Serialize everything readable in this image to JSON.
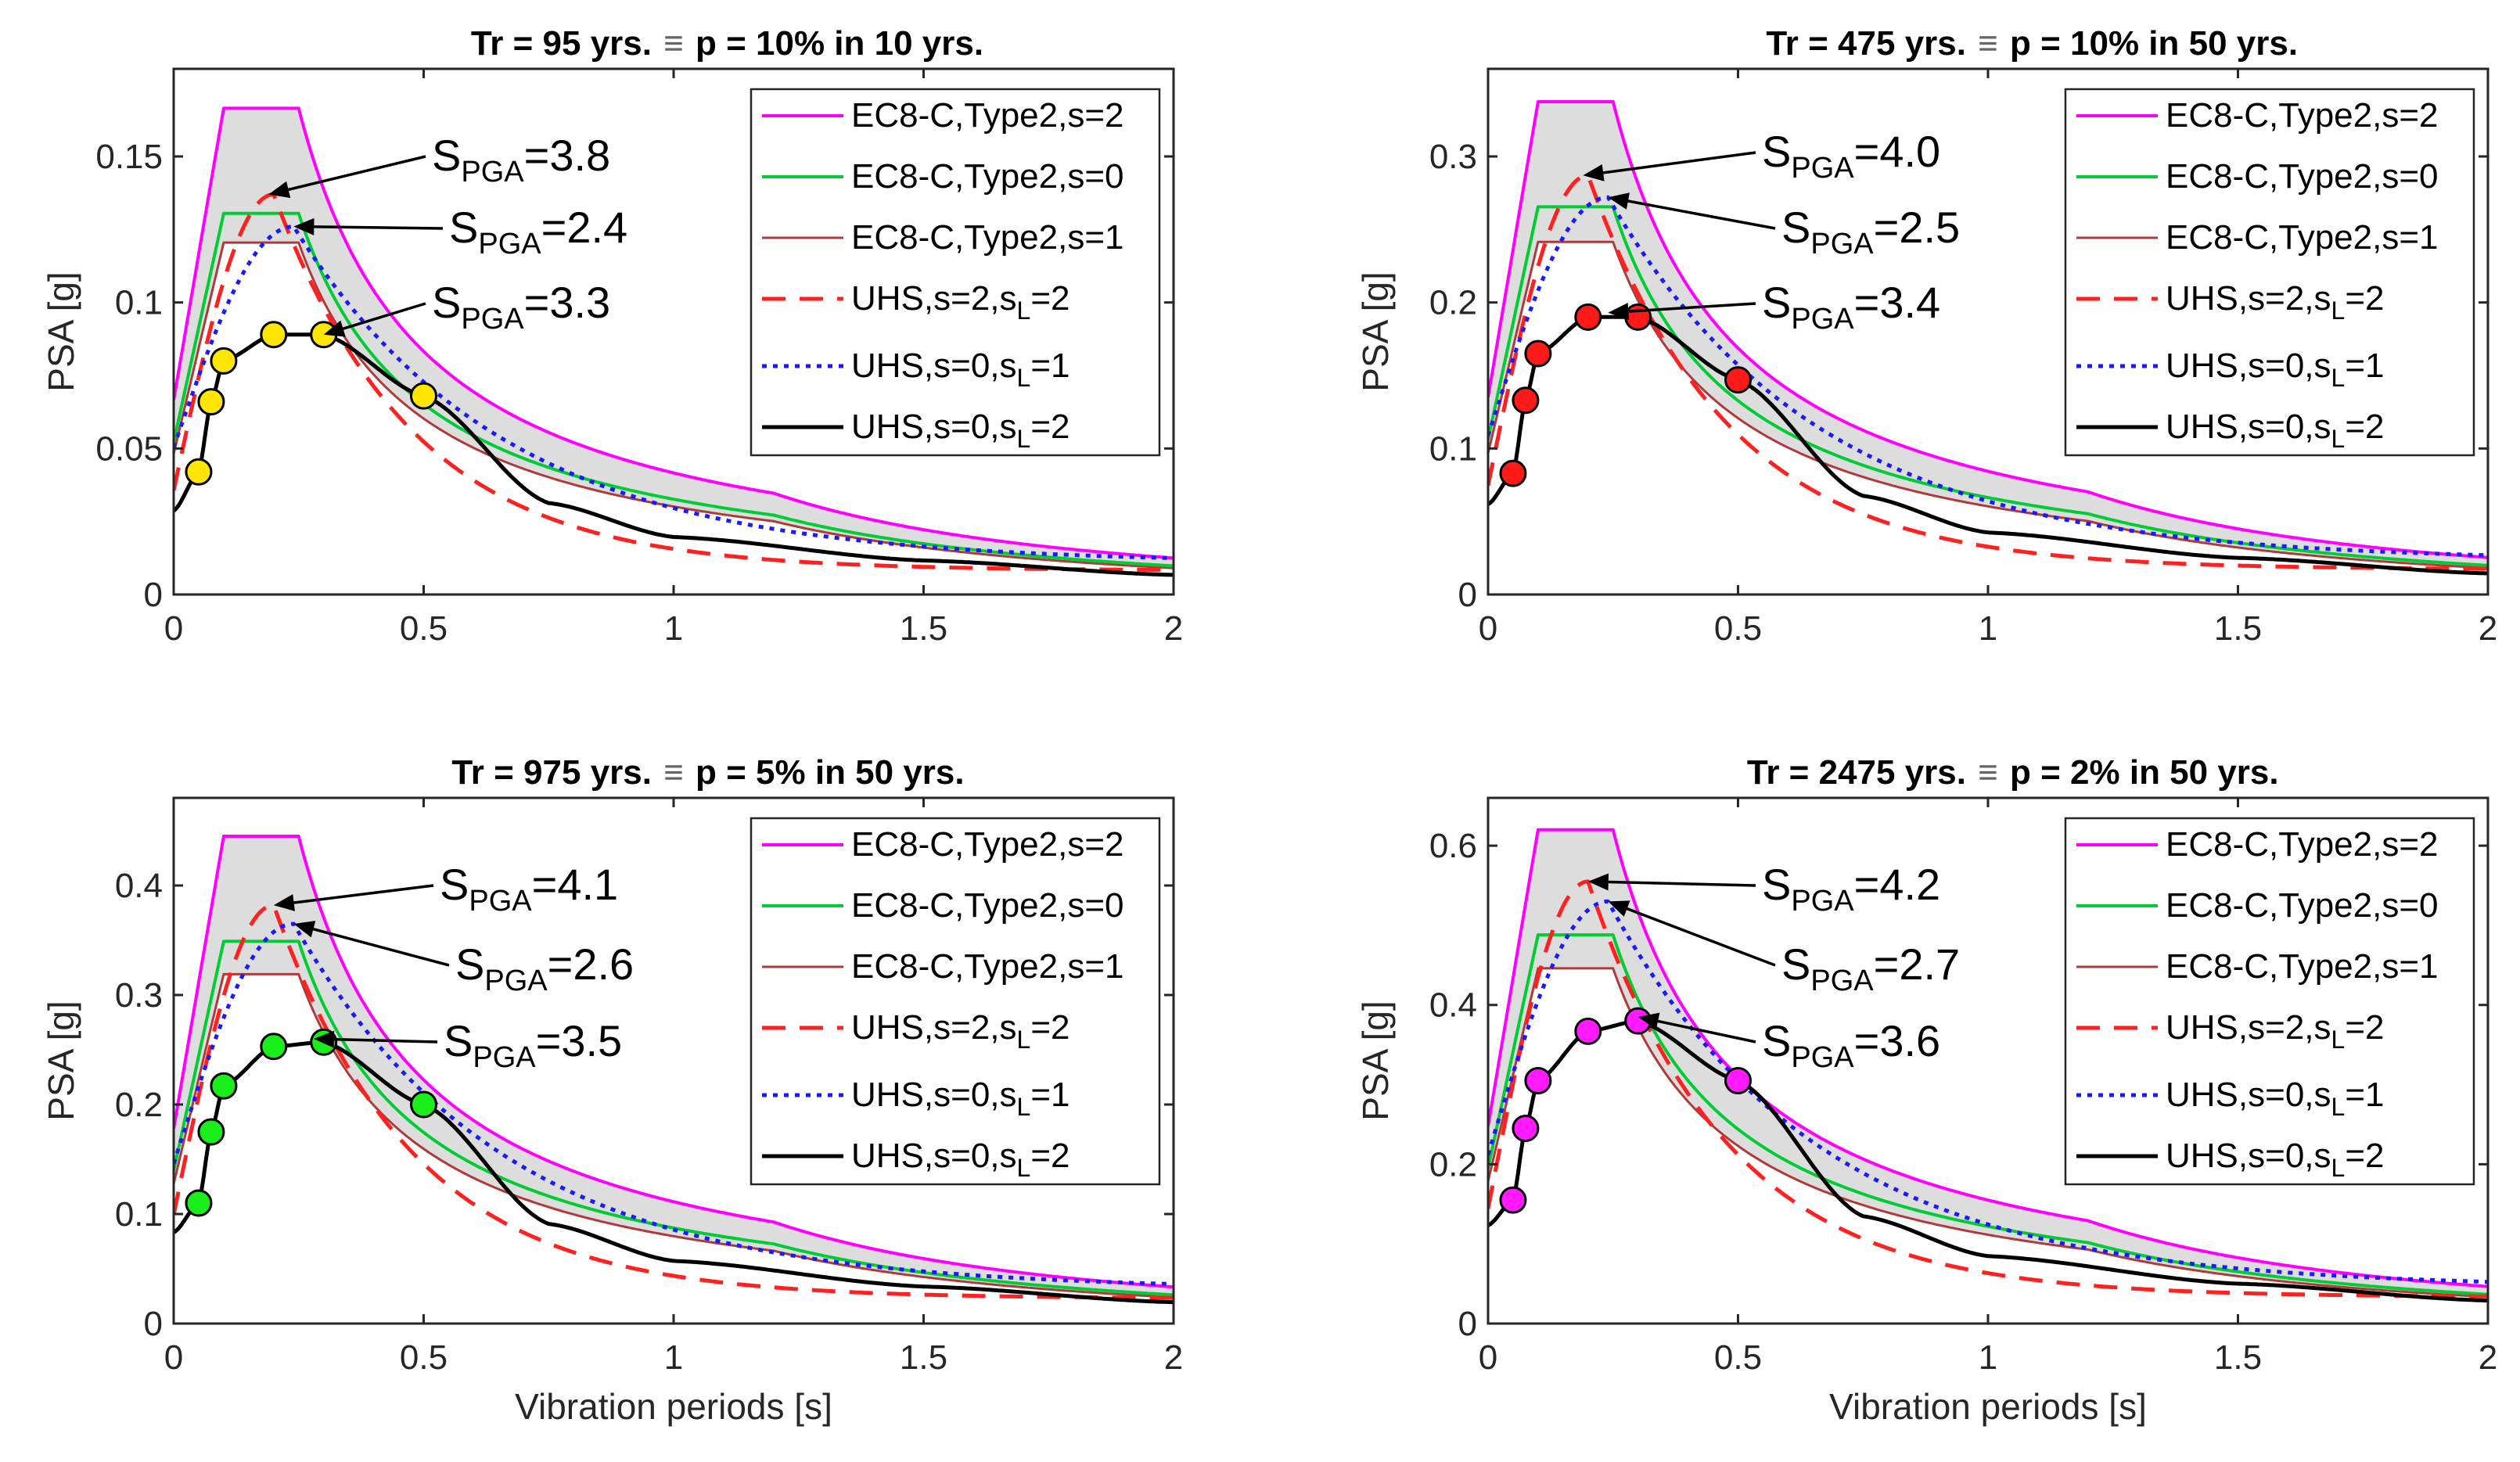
{
  "colors": {
    "ec8_s2": "#ff00ff",
    "ec8_s0": "#00cc33",
    "ec8_s1": "#b03a3a",
    "uhs_s2_sl2": "#ff2020",
    "uhs_s0_sl1": "#1a1aff",
    "uhs_s0_sl2": "#000000",
    "band_fill": "#d9d9d9"
  },
  "chart_data": [
    {
      "type": "line",
      "title": "Tr = 95 yrs. ≡ p = 10% in 10 yrs.",
      "title_left": "Tr = 95 yrs.",
      "title_right": "p = 10% in 10 yrs.",
      "equiv_symbol": "≡",
      "xlabel": "",
      "ylabel": "PSA [g]",
      "xlim": [
        0,
        2
      ],
      "ylim": [
        0,
        0.18
      ],
      "xticks": [
        "0",
        "0.5",
        "1",
        "1.5",
        "2"
      ],
      "xtick_values": [
        0,
        0.5,
        1,
        1.5,
        2
      ],
      "yticks": [
        "0",
        "0.05",
        "0.1",
        "0.15"
      ],
      "ytick_values": [
        0,
        0.05,
        0.1,
        0.15
      ],
      "marker_color": "#ffe600",
      "legend": [
        "EC8-C,Type2,s=2",
        "EC8-C,Type2,s=0",
        "EC8-C,Type2,s=1",
        "UHS,s=2,s_L=2",
        "UHS,s=0,s_L=1",
        "UHS,s=0,s_L=2"
      ],
      "legend_position": "top-right",
      "ec8": {
        "s2": 0.1665,
        "s0": 0.1305,
        "s1": 0.1205
      },
      "uhs_peaks": {
        "s2": 0.137,
        "s0_sl1": 0.126,
        "s0_sl2": 0.0895
      },
      "markers": [
        {
          "x": 0.05,
          "y": 0.042
        },
        {
          "x": 0.075,
          "y": 0.066
        },
        {
          "x": 0.1,
          "y": 0.08
        },
        {
          "x": 0.2,
          "y": 0.089
        },
        {
          "x": 0.3,
          "y": 0.089
        },
        {
          "x": 0.5,
          "y": 0.068
        }
      ],
      "annotations": [
        {
          "text_main": "S",
          "text_sub": "PGA",
          "text_value": "=3.8",
          "target_x": 0.19,
          "target_y": 0.137
        },
        {
          "text_main": "S",
          "text_sub": "PGA",
          "text_value": "=2.4",
          "target_x": 0.24,
          "target_y": 0.126
        },
        {
          "text_main": "S",
          "text_sub": "PGA",
          "text_value": "=3.3",
          "target_x": 0.3,
          "target_y": 0.089
        }
      ]
    },
    {
      "type": "line",
      "title": "Tr = 475 yrs. ≡ p = 10% in 50 yrs.",
      "title_left": "Tr = 475 yrs.",
      "title_right": "p = 10% in 50 yrs.",
      "equiv_symbol": "≡",
      "xlabel": "",
      "ylabel": "PSA [g]",
      "xlim": [
        0,
        2
      ],
      "ylim": [
        0,
        0.36
      ],
      "xticks": [
        "0",
        "0.5",
        "1",
        "1.5",
        "2"
      ],
      "xtick_values": [
        0,
        0.5,
        1,
        1.5,
        2
      ],
      "yticks": [
        "0",
        "0.1",
        "0.2",
        "0.3"
      ],
      "ytick_values": [
        0,
        0.1,
        0.2,
        0.3
      ],
      "marker_color": "#ff1a1a",
      "legend": [
        "EC8-C,Type2,s=2",
        "EC8-C,Type2,s=0",
        "EC8-C,Type2,s=1",
        "UHS,s=2,s_L=2",
        "UHS,s=0,s_L=1",
        "UHS,s=0,s_L=2"
      ],
      "legend_position": "top-right",
      "ec8": {
        "s2": 0.3375,
        "s0": 0.2655,
        "s1": 0.2415
      },
      "uhs_peaks": {
        "s2": 0.287,
        "s0_sl1": 0.272,
        "s0_sl2": 0.193
      },
      "markers": [
        {
          "x": 0.05,
          "y": 0.083
        },
        {
          "x": 0.075,
          "y": 0.133
        },
        {
          "x": 0.1,
          "y": 0.165
        },
        {
          "x": 0.2,
          "y": 0.19
        },
        {
          "x": 0.3,
          "y": 0.19
        },
        {
          "x": 0.5,
          "y": 0.147
        }
      ],
      "annotations": [
        {
          "text_main": "S",
          "text_sub": "PGA",
          "text_value": "=4.0",
          "target_x": 0.19,
          "target_y": 0.287
        },
        {
          "text_main": "S",
          "text_sub": "PGA",
          "text_value": "=2.5",
          "target_x": 0.24,
          "target_y": 0.272
        },
        {
          "text_main": "S",
          "text_sub": "PGA",
          "text_value": "=3.4",
          "target_x": 0.24,
          "target_y": 0.193
        }
      ]
    },
    {
      "type": "line",
      "title": "Tr = 975 yrs. ≡ p = 5% in 50 yrs.",
      "title_left": "Tr = 975 yrs.",
      "title_right": "p = 5% in 50 yrs.",
      "equiv_symbol": "≡",
      "xlabel": "Vibration periods [s]",
      "ylabel": "PSA [g]",
      "xlim": [
        0,
        2
      ],
      "ylim": [
        0,
        0.48
      ],
      "xticks": [
        "0",
        "0.5",
        "1",
        "1.5",
        "2"
      ],
      "xtick_values": [
        0,
        0.5,
        1,
        1.5,
        2
      ],
      "yticks": [
        "0",
        "0.1",
        "0.2",
        "0.3",
        "0.4"
      ],
      "ytick_values": [
        0,
        0.1,
        0.2,
        0.3,
        0.4
      ],
      "marker_color": "#1aee1a",
      "legend": [
        "EC8-C,Type2,s=2",
        "EC8-C,Type2,s=0",
        "EC8-C,Type2,s=1",
        "UHS,s=2,s_L=2",
        "UHS,s=0,s_L=1",
        "UHS,s=0,s_L=2"
      ],
      "legend_position": "top-right",
      "ec8": {
        "s2": 0.445,
        "s0": 0.349,
        "s1": 0.319
      },
      "uhs_peaks": {
        "s2": 0.382,
        "s0_sl1": 0.365,
        "s0_sl2": 0.26
      },
      "markers": [
        {
          "x": 0.05,
          "y": 0.11
        },
        {
          "x": 0.075,
          "y": 0.175
        },
        {
          "x": 0.1,
          "y": 0.217
        },
        {
          "x": 0.2,
          "y": 0.253
        },
        {
          "x": 0.3,
          "y": 0.257
        },
        {
          "x": 0.5,
          "y": 0.2
        }
      ],
      "annotations": [
        {
          "text_main": "S",
          "text_sub": "PGA",
          "text_value": "=4.1",
          "target_x": 0.2,
          "target_y": 0.382
        },
        {
          "text_main": "S",
          "text_sub": "PGA",
          "text_value": "=2.6",
          "target_x": 0.24,
          "target_y": 0.365
        },
        {
          "text_main": "S",
          "text_sub": "PGA",
          "text_value": "=3.5",
          "target_x": 0.28,
          "target_y": 0.26
        }
      ]
    },
    {
      "type": "line",
      "title": "Tr = 2475 yrs. ≡ p = 2% in 50 yrs.",
      "title_left": "Tr = 2475 yrs.",
      "title_right": "p = 2% in 50 yrs.",
      "equiv_symbol": "≡",
      "xlabel": "Vibration periods [s]",
      "ylabel": "PSA [g]",
      "xlim": [
        0,
        2
      ],
      "ylim": [
        0,
        0.66
      ],
      "xticks": [
        "0",
        "0.5",
        "1",
        "1.5",
        "2"
      ],
      "xtick_values": [
        0,
        0.5,
        1,
        1.5,
        2
      ],
      "yticks": [
        "0",
        "0.2",
        "0.4",
        "0.6"
      ],
      "ytick_values": [
        0,
        0.2,
        0.4,
        0.6
      ],
      "marker_color": "#ff1aff",
      "legend": [
        "EC8-C,Type2,s=2",
        "EC8-C,Type2,s=0",
        "EC8-C,Type2,s=1",
        "UHS,s=2,s_L=2",
        "UHS,s=0,s_L=1",
        "UHS,s=0,s_L=2"
      ],
      "legend_position": "top-right",
      "ec8": {
        "s2": 0.62,
        "s0": 0.488,
        "s1": 0.446
      },
      "uhs_peaks": {
        "s2": 0.555,
        "s0_sl1": 0.53,
        "s0_sl2": 0.385
      },
      "markers": [
        {
          "x": 0.05,
          "y": 0.155
        },
        {
          "x": 0.075,
          "y": 0.245
        },
        {
          "x": 0.1,
          "y": 0.305
        },
        {
          "x": 0.2,
          "y": 0.367
        },
        {
          "x": 0.3,
          "y": 0.38
        },
        {
          "x": 0.5,
          "y": 0.305
        }
      ],
      "annotations": [
        {
          "text_main": "S",
          "text_sub": "PGA",
          "text_value": "=4.2",
          "target_x": 0.2,
          "target_y": 0.555
        },
        {
          "text_main": "S",
          "text_sub": "PGA",
          "text_value": "=2.7",
          "target_x": 0.24,
          "target_y": 0.53
        },
        {
          "text_main": "S",
          "text_sub": "PGA",
          "text_value": "=3.6",
          "target_x": 0.3,
          "target_y": 0.385
        }
      ]
    }
  ]
}
